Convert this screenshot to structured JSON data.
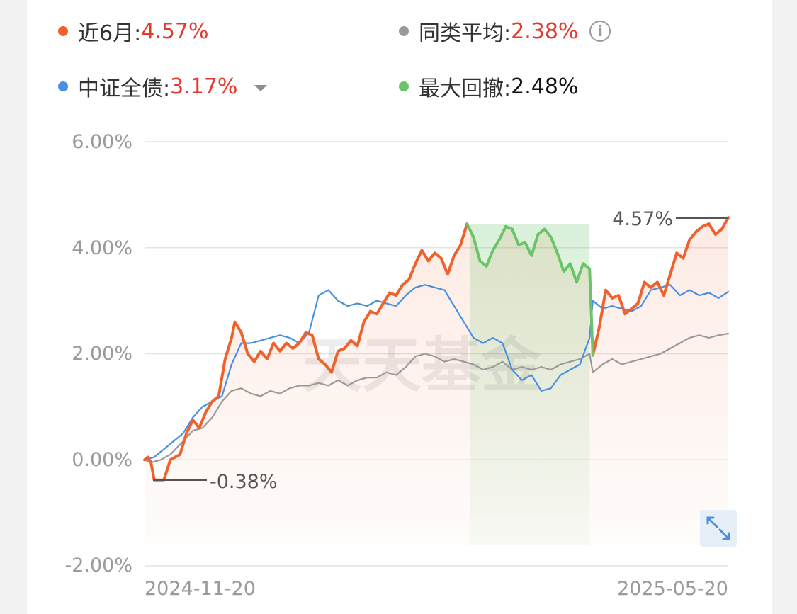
{
  "legend": {
    "fund": {
      "label": "近6月:",
      "value": "4.57%",
      "color": "#f0622d"
    },
    "peer": {
      "label": "同类平均:",
      "value": "2.38%",
      "color": "#9a9a9a"
    },
    "index": {
      "label": "中证全债:",
      "value": "3.17%",
      "color": "#4a90e2"
    },
    "drawdown": {
      "label": "最大回撤:",
      "value": "2.48%",
      "color": "#6cc46a"
    }
  },
  "icons": {
    "info": "info-icon",
    "dropdown": "caret-down-icon",
    "expand": "expand-icon"
  },
  "chart_data": {
    "type": "line",
    "x_start": "2024-11-20",
    "x_end": "2025-05-20",
    "y_ticks": [
      "6.00%",
      "4.00%",
      "2.00%",
      "0.00%",
      "-2.00%"
    ],
    "ylim": [
      -2,
      6
    ],
    "grid": true,
    "watermark": "天天基金",
    "annotations": {
      "max": "4.57%",
      "min": "-0.38%"
    },
    "drawdown_range": {
      "start": "2025-03-01",
      "end": "2025-04-07"
    },
    "series": [
      {
        "name": "近6月",
        "color": "#f0622d",
        "points": [
          [
            "2024-11-20",
            0.0
          ],
          [
            "2024-11-21",
            0.05
          ],
          [
            "2024-11-22",
            -0.05
          ],
          [
            "2024-11-23",
            -0.38
          ],
          [
            "2024-11-26",
            -0.38
          ],
          [
            "2024-11-28",
            0.0
          ],
          [
            "2024-12-01",
            0.1
          ],
          [
            "2024-12-03",
            0.5
          ],
          [
            "2024-12-05",
            0.75
          ],
          [
            "2024-12-07",
            0.6
          ],
          [
            "2024-12-09",
            0.9
          ],
          [
            "2024-12-11",
            1.1
          ],
          [
            "2024-12-13",
            1.2
          ],
          [
            "2024-12-15",
            1.9
          ],
          [
            "2024-12-17",
            2.3
          ],
          [
            "2024-12-18",
            2.6
          ],
          [
            "2024-12-20",
            2.4
          ],
          [
            "2024-12-22",
            2.0
          ],
          [
            "2024-12-24",
            1.85
          ],
          [
            "2024-12-26",
            2.05
          ],
          [
            "2024-12-28",
            1.9
          ],
          [
            "2024-12-30",
            2.2
          ],
          [
            "2025-01-01",
            2.05
          ],
          [
            "2025-01-03",
            2.2
          ],
          [
            "2025-01-05",
            2.1
          ],
          [
            "2025-01-07",
            2.2
          ],
          [
            "2025-01-09",
            2.4
          ],
          [
            "2025-01-11",
            2.35
          ],
          [
            "2025-01-13",
            1.9
          ],
          [
            "2025-01-15",
            1.8
          ],
          [
            "2025-01-17",
            1.65
          ],
          [
            "2025-01-19",
            2.05
          ],
          [
            "2025-01-21",
            2.1
          ],
          [
            "2025-01-23",
            2.25
          ],
          [
            "2025-01-25",
            2.15
          ],
          [
            "2025-01-27",
            2.6
          ],
          [
            "2025-01-29",
            2.8
          ],
          [
            "2025-01-31",
            2.75
          ],
          [
            "2025-02-02",
            2.95
          ],
          [
            "2025-02-04",
            3.15
          ],
          [
            "2025-02-06",
            3.1
          ],
          [
            "2025-02-08",
            3.3
          ],
          [
            "2025-02-10",
            3.4
          ],
          [
            "2025-02-12",
            3.7
          ],
          [
            "2025-02-14",
            3.95
          ],
          [
            "2025-02-16",
            3.75
          ],
          [
            "2025-02-18",
            3.9
          ],
          [
            "2025-02-20",
            3.8
          ],
          [
            "2025-02-22",
            3.5
          ],
          [
            "2025-02-24",
            3.85
          ],
          [
            "2025-02-26",
            4.05
          ],
          [
            "2025-02-28",
            4.45
          ]
        ]
      },
      {
        "name": "同类平均",
        "color": "#9a9a9a",
        "points": [
          [
            "2024-11-20",
            0.0
          ],
          [
            "2024-11-22",
            -0.05
          ],
          [
            "2024-11-25",
            0.0
          ],
          [
            "2024-11-28",
            0.1
          ],
          [
            "2024-12-02",
            0.35
          ],
          [
            "2024-12-05",
            0.55
          ],
          [
            "2024-12-08",
            0.6
          ],
          [
            "2024-12-11",
            0.8
          ],
          [
            "2024-12-14",
            1.1
          ],
          [
            "2024-12-17",
            1.3
          ],
          [
            "2024-12-20",
            1.35
          ],
          [
            "2024-12-23",
            1.25
          ],
          [
            "2024-12-26",
            1.2
          ],
          [
            "2024-12-29",
            1.3
          ],
          [
            "2025-01-01",
            1.25
          ],
          [
            "2025-01-04",
            1.35
          ],
          [
            "2025-01-07",
            1.4
          ],
          [
            "2025-01-10",
            1.4
          ],
          [
            "2025-01-13",
            1.45
          ],
          [
            "2025-01-16",
            1.4
          ],
          [
            "2025-01-19",
            1.5
          ],
          [
            "2025-01-22",
            1.4
          ],
          [
            "2025-01-25",
            1.5
          ],
          [
            "2025-01-28",
            1.55
          ],
          [
            "2025-01-31",
            1.55
          ],
          [
            "2025-02-03",
            1.65
          ],
          [
            "2025-02-06",
            1.6
          ],
          [
            "2025-02-09",
            1.75
          ],
          [
            "2025-02-12",
            1.95
          ],
          [
            "2025-02-15",
            2.0
          ],
          [
            "2025-02-18",
            1.95
          ],
          [
            "2025-02-21",
            1.85
          ],
          [
            "2025-02-24",
            1.9
          ],
          [
            "2025-02-27",
            1.85
          ],
          [
            "2025-03-02",
            1.8
          ],
          [
            "2025-03-05",
            1.7
          ],
          [
            "2025-03-08",
            1.75
          ],
          [
            "2025-03-11",
            1.85
          ],
          [
            "2025-03-14",
            1.7
          ],
          [
            "2025-03-17",
            1.75
          ],
          [
            "2025-03-20",
            1.7
          ],
          [
            "2025-03-23",
            1.75
          ],
          [
            "2025-03-26",
            1.7
          ],
          [
            "2025-03-29",
            1.8
          ],
          [
            "2025-04-01",
            1.85
          ],
          [
            "2025-04-04",
            1.9
          ],
          [
            "2025-04-07",
            2.0
          ],
          [
            "2025-04-08",
            1.65
          ],
          [
            "2025-04-11",
            1.8
          ],
          [
            "2025-04-14",
            1.9
          ],
          [
            "2025-04-17",
            1.8
          ],
          [
            "2025-04-20",
            1.85
          ],
          [
            "2025-04-23",
            1.9
          ],
          [
            "2025-04-26",
            1.95
          ],
          [
            "2025-04-29",
            2.0
          ],
          [
            "2025-05-02",
            2.1
          ],
          [
            "2025-05-05",
            2.2
          ],
          [
            "2025-05-08",
            2.3
          ],
          [
            "2025-05-11",
            2.35
          ],
          [
            "2025-05-14",
            2.3
          ],
          [
            "2025-05-17",
            2.35
          ],
          [
            "2025-05-20",
            2.38
          ]
        ]
      },
      {
        "name": "中证全债",
        "color": "#4a90e2",
        "points": [
          [
            "2024-11-20",
            0.0
          ],
          [
            "2024-11-23",
            0.05
          ],
          [
            "2024-11-26",
            0.2
          ],
          [
            "2024-11-29",
            0.35
          ],
          [
            "2024-12-02",
            0.5
          ],
          [
            "2024-12-05",
            0.8
          ],
          [
            "2024-12-08",
            1.0
          ],
          [
            "2024-12-11",
            1.1
          ],
          [
            "2024-12-14",
            1.2
          ],
          [
            "2024-12-17",
            1.8
          ],
          [
            "2024-12-20",
            2.2
          ],
          [
            "2024-12-23",
            2.2
          ],
          [
            "2024-12-26",
            2.25
          ],
          [
            "2024-12-29",
            2.3
          ],
          [
            "2025-01-01",
            2.35
          ],
          [
            "2025-01-04",
            2.3
          ],
          [
            "2025-01-07",
            2.2
          ],
          [
            "2025-01-10",
            2.4
          ],
          [
            "2025-01-13",
            3.1
          ],
          [
            "2025-01-16",
            3.2
          ],
          [
            "2025-01-19",
            3.0
          ],
          [
            "2025-01-22",
            2.9
          ],
          [
            "2025-01-25",
            2.95
          ],
          [
            "2025-01-28",
            2.9
          ],
          [
            "2025-01-31",
            3.0
          ],
          [
            "2025-02-03",
            2.95
          ],
          [
            "2025-02-06",
            2.9
          ],
          [
            "2025-02-09",
            3.1
          ],
          [
            "2025-02-12",
            3.25
          ],
          [
            "2025-02-15",
            3.3
          ],
          [
            "2025-02-18",
            3.25
          ],
          [
            "2025-02-21",
            3.2
          ],
          [
            "2025-02-24",
            2.9
          ],
          [
            "2025-02-27",
            2.6
          ],
          [
            "2025-03-02",
            2.3
          ],
          [
            "2025-03-05",
            2.2
          ],
          [
            "2025-03-08",
            2.3
          ],
          [
            "2025-03-11",
            2.2
          ],
          [
            "2025-03-14",
            1.7
          ],
          [
            "2025-03-17",
            1.5
          ],
          [
            "2025-03-20",
            1.6
          ],
          [
            "2025-03-23",
            1.3
          ],
          [
            "2025-03-26",
            1.35
          ],
          [
            "2025-03-29",
            1.6
          ],
          [
            "2025-04-01",
            1.7
          ],
          [
            "2025-04-04",
            1.8
          ],
          [
            "2025-04-07",
            2.3
          ],
          [
            "2025-04-08",
            3.0
          ],
          [
            "2025-04-11",
            2.85
          ],
          [
            "2025-04-14",
            2.9
          ],
          [
            "2025-04-17",
            2.85
          ],
          [
            "2025-04-20",
            2.8
          ],
          [
            "2025-04-23",
            2.9
          ],
          [
            "2025-04-26",
            3.2
          ],
          [
            "2025-04-29",
            3.25
          ],
          [
            "2025-05-02",
            3.3
          ],
          [
            "2025-05-05",
            3.1
          ],
          [
            "2025-05-08",
            3.2
          ],
          [
            "2025-05-11",
            3.1
          ],
          [
            "2025-05-14",
            3.15
          ],
          [
            "2025-05-17",
            3.05
          ],
          [
            "2025-05-20",
            3.17
          ]
        ]
      },
      {
        "name": "最大回撤",
        "color": "#6cc46a",
        "points": [
          [
            "2025-02-28",
            4.45
          ],
          [
            "2025-03-02",
            4.2
          ],
          [
            "2025-03-04",
            3.75
          ],
          [
            "2025-03-06",
            3.65
          ],
          [
            "2025-03-08",
            3.95
          ],
          [
            "2025-03-10",
            4.15
          ],
          [
            "2025-03-12",
            4.4
          ],
          [
            "2025-03-14",
            4.35
          ],
          [
            "2025-03-16",
            4.05
          ],
          [
            "2025-03-18",
            4.1
          ],
          [
            "2025-03-20",
            3.85
          ],
          [
            "2025-03-22",
            4.25
          ],
          [
            "2025-03-24",
            4.35
          ],
          [
            "2025-03-26",
            4.2
          ],
          [
            "2025-03-28",
            3.9
          ],
          [
            "2025-03-30",
            3.55
          ],
          [
            "2025-04-01",
            3.7
          ],
          [
            "2025-04-03",
            3.35
          ],
          [
            "2025-04-05",
            3.7
          ],
          [
            "2025-04-07",
            3.6
          ],
          [
            "2025-04-08",
            1.97
          ]
        ]
      },
      {
        "name": "近6月(续)",
        "color": "#f0622d",
        "points": [
          [
            "2025-04-08",
            1.97
          ],
          [
            "2025-04-10",
            2.5
          ],
          [
            "2025-04-12",
            3.2
          ],
          [
            "2025-04-14",
            3.05
          ],
          [
            "2025-04-16",
            3.1
          ],
          [
            "2025-04-18",
            2.75
          ],
          [
            "2025-04-20",
            2.85
          ],
          [
            "2025-04-22",
            2.95
          ],
          [
            "2025-04-24",
            3.35
          ],
          [
            "2025-04-26",
            3.25
          ],
          [
            "2025-04-28",
            3.35
          ],
          [
            "2025-04-30",
            3.1
          ],
          [
            "2025-05-02",
            3.5
          ],
          [
            "2025-05-04",
            3.9
          ],
          [
            "2025-05-06",
            3.8
          ],
          [
            "2025-05-08",
            4.15
          ],
          [
            "2025-05-10",
            4.3
          ],
          [
            "2025-05-12",
            4.4
          ],
          [
            "2025-05-14",
            4.45
          ],
          [
            "2025-05-16",
            4.25
          ],
          [
            "2025-05-18",
            4.35
          ],
          [
            "2025-05-20",
            4.57
          ]
        ]
      }
    ]
  }
}
